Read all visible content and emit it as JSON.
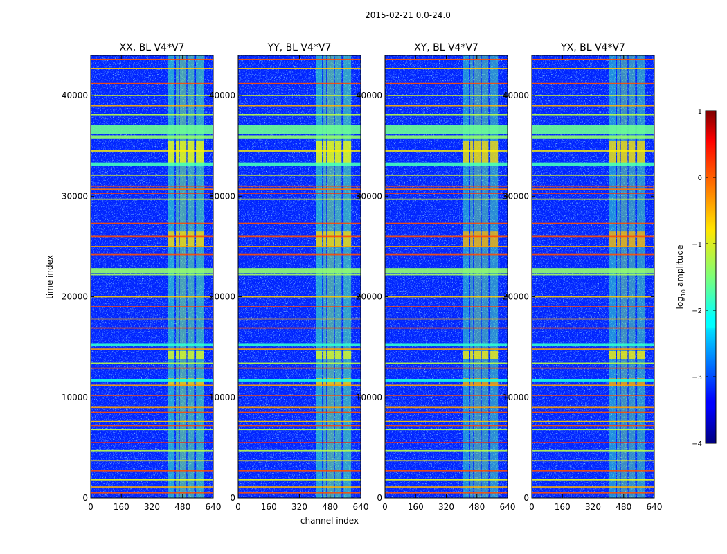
{
  "figure_title": "2015-02-21 0.0-24.0",
  "chart_data": {
    "type": "heatmap",
    "xlabel": "channel index",
    "ylabel": "time index",
    "xlim": [
      0,
      640
    ],
    "ylim": [
      0,
      44000
    ],
    "xticks": [
      0,
      160,
      320,
      480,
      640
    ],
    "yticks": [
      0,
      10000,
      20000,
      30000,
      40000
    ],
    "panels": [
      {
        "title": "XX, BL V4*V7",
        "cross_pol": false
      },
      {
        "title": "YY, BL V4*V7",
        "cross_pol": false
      },
      {
        "title": "XY, BL V4*V7",
        "cross_pol": true
      },
      {
        "title": "YX, BL V4*V7",
        "cross_pol": true
      }
    ],
    "background_log_amplitude": -3.2,
    "channel_bands": [
      {
        "start": 405,
        "end": 438,
        "log_amplitude": -1.8
      },
      {
        "start": 445,
        "end": 460,
        "log_amplitude": -1.6
      },
      {
        "start": 465,
        "end": 500,
        "log_amplitude": -1.5
      },
      {
        "start": 505,
        "end": 540,
        "log_amplitude": -1.6
      },
      {
        "start": 550,
        "end": 590,
        "log_amplitude": -1.7
      }
    ],
    "hot_time_ranges": [
      {
        "start": 33000,
        "end": 35500,
        "log_amplitude": -0.9
      },
      {
        "start": 25000,
        "end": 26500,
        "log_amplitude": -0.7
      },
      {
        "start": 11200,
        "end": 11900,
        "log_amplitude": -0.6
      },
      {
        "start": 13800,
        "end": 14600,
        "log_amplitude": -1.0
      }
    ],
    "rfi_time_rows": [
      {
        "t": 43600,
        "log_amplitude": 0.0
      },
      {
        "t": 42700,
        "log_amplitude": -0.6
      },
      {
        "t": 41200,
        "log_amplitude": 0.0
      },
      {
        "t": 40000,
        "log_amplitude": -1.0
      },
      {
        "t": 39000,
        "log_amplitude": -0.5
      },
      {
        "t": 38100,
        "log_amplitude": -1.2
      },
      {
        "t": 36600,
        "log_amplitude": -1.6,
        "width": 900
      },
      {
        "t": 35900,
        "log_amplitude": -1.4,
        "width": 300
      },
      {
        "t": 34500,
        "log_amplitude": -0.8
      },
      {
        "t": 33200,
        "log_amplitude": -1.8,
        "width": 300
      },
      {
        "t": 32100,
        "log_amplitude": -1.0
      },
      {
        "t": 31000,
        "log_amplitude": 0.0
      },
      {
        "t": 30700,
        "log_amplitude": -0.2
      },
      {
        "t": 30300,
        "log_amplitude": 0.1
      },
      {
        "t": 29700,
        "log_amplitude": -1.0
      },
      {
        "t": 27300,
        "log_amplitude": 0.0
      },
      {
        "t": 26000,
        "log_amplitude": 0.0
      },
      {
        "t": 25000,
        "log_amplitude": -0.4
      },
      {
        "t": 24200,
        "log_amplitude": 0.0
      },
      {
        "t": 22600,
        "log_amplitude": -1.4,
        "width": 500
      },
      {
        "t": 22200,
        "log_amplitude": -1.3
      },
      {
        "t": 20000,
        "log_amplitude": -0.6
      },
      {
        "t": 19000,
        "log_amplitude": 0.0
      },
      {
        "t": 17800,
        "log_amplitude": -0.5
      },
      {
        "t": 16900,
        "log_amplitude": 0.0
      },
      {
        "t": 15200,
        "log_amplitude": -1.9,
        "width": 250
      },
      {
        "t": 14800,
        "log_amplitude": -0.4
      },
      {
        "t": 13400,
        "log_amplitude": -1.2
      },
      {
        "t": 12900,
        "log_amplitude": 0.0
      },
      {
        "t": 11700,
        "log_amplitude": -2.0,
        "width": 250
      },
      {
        "t": 11200,
        "log_amplitude": -0.4
      },
      {
        "t": 10200,
        "log_amplitude": 0.0
      },
      {
        "t": 9000,
        "log_amplitude": -0.4
      },
      {
        "t": 8500,
        "log_amplitude": 0.0
      },
      {
        "t": 7600,
        "log_amplitude": -0.6
      },
      {
        "t": 7200,
        "log_amplitude": 0.0
      },
      {
        "t": 6800,
        "log_amplitude": -1.2
      },
      {
        "t": 5500,
        "log_amplitude": 0.2
      },
      {
        "t": 4700,
        "log_amplitude": -1.2
      },
      {
        "t": 3700,
        "log_amplitude": -0.8
      },
      {
        "t": 2700,
        "log_amplitude": 0.0
      },
      {
        "t": 1800,
        "log_amplitude": -1.0
      },
      {
        "t": 1100,
        "log_amplitude": -0.5
      },
      {
        "t": 500,
        "log_amplitude": 0.0
      }
    ],
    "colorbar": {
      "label": "log",
      "label_subscript": "10",
      "label_suffix": " amplitude",
      "range": [
        -4,
        1
      ],
      "ticks": [
        1,
        0,
        -1,
        -2,
        -3,
        -4
      ],
      "tick_labels": [
        "1",
        "0",
        "−1",
        "−2",
        "−3",
        "−4"
      ],
      "colormap": "jet"
    }
  }
}
